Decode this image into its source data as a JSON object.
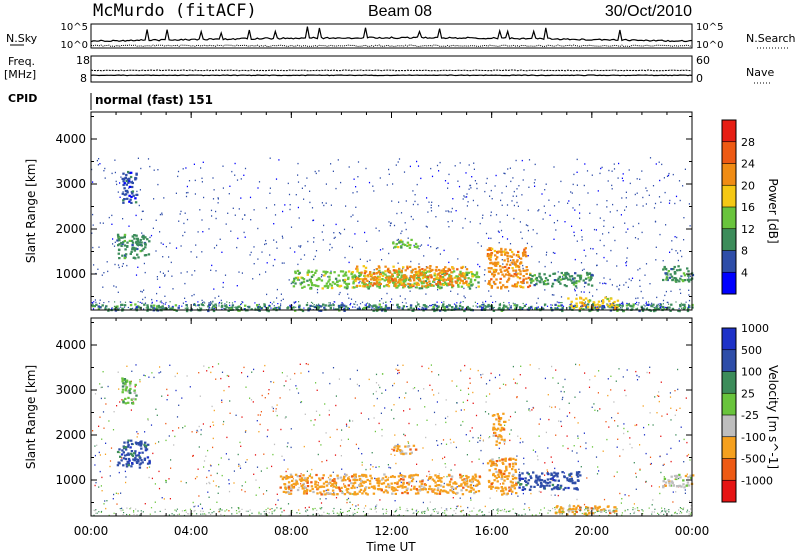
{
  "header": {
    "station": "McMurdo (fitACF)",
    "beam": "Beam 08",
    "date": "30/Oct/2010"
  },
  "sky_panel": {
    "left_label": "N.Sky",
    "right_label": "N.Search",
    "left_ticks": [
      "10^5",
      "10^0"
    ],
    "right_ticks": [
      "10^5",
      "10^0"
    ]
  },
  "freq_panel": {
    "left_label_1": "Freq.",
    "left_label_2": "[MHz]",
    "right_label": "Nave",
    "left_ticks": [
      "18",
      "8"
    ],
    "right_ticks": [
      "60",
      "0"
    ]
  },
  "cpid": {
    "label": "CPID",
    "value": "normal (fast) 151"
  },
  "colors": {
    "power": [
      "#0000ff",
      "#2e4da8",
      "#3c8c5a",
      "#69c43c",
      "#f5c814",
      "#f08c14",
      "#ee5a14",
      "#e61e14"
    ],
    "velocity": [
      "#e61414",
      "#ee5a14",
      "#f5a01e",
      "#bebebe",
      "#69c43c",
      "#3c8c5a",
      "#2e4da8",
      "#1e32c8"
    ]
  },
  "chart_data": [
    {
      "type": "heatmap",
      "quantity": "Power",
      "ylabel": "Slant Range [km]",
      "yticks": [
        "1000",
        "2000",
        "3000",
        "4000"
      ],
      "ylim": [
        200,
        4600
      ],
      "xlim": [
        0,
        24
      ],
      "colorbar_label": "Power [dB]",
      "colorbar_ticks": [
        "4",
        "8",
        "12",
        "16",
        "20",
        "24",
        "28"
      ],
      "colorbar_range": [
        0,
        32
      ],
      "features": [
        {
          "t_start": 0.0,
          "t_end": 24.0,
          "range_min": 200,
          "range_max": 350,
          "value": 10
        },
        {
          "t_start": 1.0,
          "t_end": 2.3,
          "range_min": 1350,
          "range_max": 1900,
          "value": 9
        },
        {
          "t_start": 1.2,
          "t_end": 1.8,
          "range_min": 2600,
          "range_max": 3300,
          "value": 7
        },
        {
          "t_start": 8.0,
          "t_end": 15.5,
          "range_min": 700,
          "range_max": 1100,
          "value": 12
        },
        {
          "t_start": 10.5,
          "t_end": 15.0,
          "range_min": 750,
          "range_max": 1200,
          "value": 21
        },
        {
          "t_start": 12.0,
          "t_end": 13.0,
          "range_min": 1600,
          "range_max": 1800,
          "value": 14
        },
        {
          "t_start": 15.8,
          "t_end": 17.5,
          "range_min": 700,
          "range_max": 1600,
          "value": 20
        },
        {
          "t_start": 17.5,
          "t_end": 20.0,
          "range_min": 750,
          "range_max": 1050,
          "value": 9
        },
        {
          "t_start": 19.0,
          "t_end": 21.0,
          "range_min": 250,
          "range_max": 500,
          "value": 16
        },
        {
          "t_start": 22.8,
          "t_end": 24.0,
          "range_min": 850,
          "range_max": 1200,
          "value": 11
        }
      ]
    },
    {
      "type": "heatmap",
      "quantity": "Velocity",
      "ylabel": "Slant Range [km]",
      "yticks": [
        "1000",
        "2000",
        "3000",
        "4000"
      ],
      "ylim": [
        200,
        4600
      ],
      "xlim": [
        0,
        24
      ],
      "xlabel": "Time UT",
      "xticks": [
        "00:00",
        "04:00",
        "08:00",
        "12:00",
        "16:00",
        "20:00",
        "00:00"
      ],
      "colorbar_label": "Velocity [m s^-1]",
      "colorbar_ticks": [
        "-1000",
        "-500",
        "-100",
        "-25",
        "25",
        "100",
        "500",
        "1000"
      ],
      "features": [
        {
          "t_start": 1.0,
          "t_end": 2.3,
          "range_min": 1300,
          "range_max": 1900,
          "value": 300
        },
        {
          "t_start": 1.2,
          "t_end": 1.8,
          "range_min": 2700,
          "range_max": 3300,
          "value": -20
        },
        {
          "t_start": 7.5,
          "t_end": 15.5,
          "range_min": 700,
          "range_max": 1150,
          "value": -300
        },
        {
          "t_start": 12.0,
          "t_end": 13.0,
          "range_min": 1600,
          "range_max": 1800,
          "value": -200
        },
        {
          "t_start": 15.8,
          "t_end": 17.0,
          "range_min": 700,
          "range_max": 1500,
          "value": -400
        },
        {
          "t_start": 16.0,
          "t_end": 16.5,
          "range_min": 1800,
          "range_max": 2500,
          "value": -300
        },
        {
          "t_start": 17.0,
          "t_end": 19.5,
          "range_min": 800,
          "range_max": 1200,
          "value": 150
        },
        {
          "t_start": 18.5,
          "t_end": 21.0,
          "range_min": 250,
          "range_max": 450,
          "value": -100
        },
        {
          "t_start": 22.8,
          "t_end": 24.0,
          "range_min": 850,
          "range_max": 1150,
          "value": -60
        }
      ]
    }
  ]
}
